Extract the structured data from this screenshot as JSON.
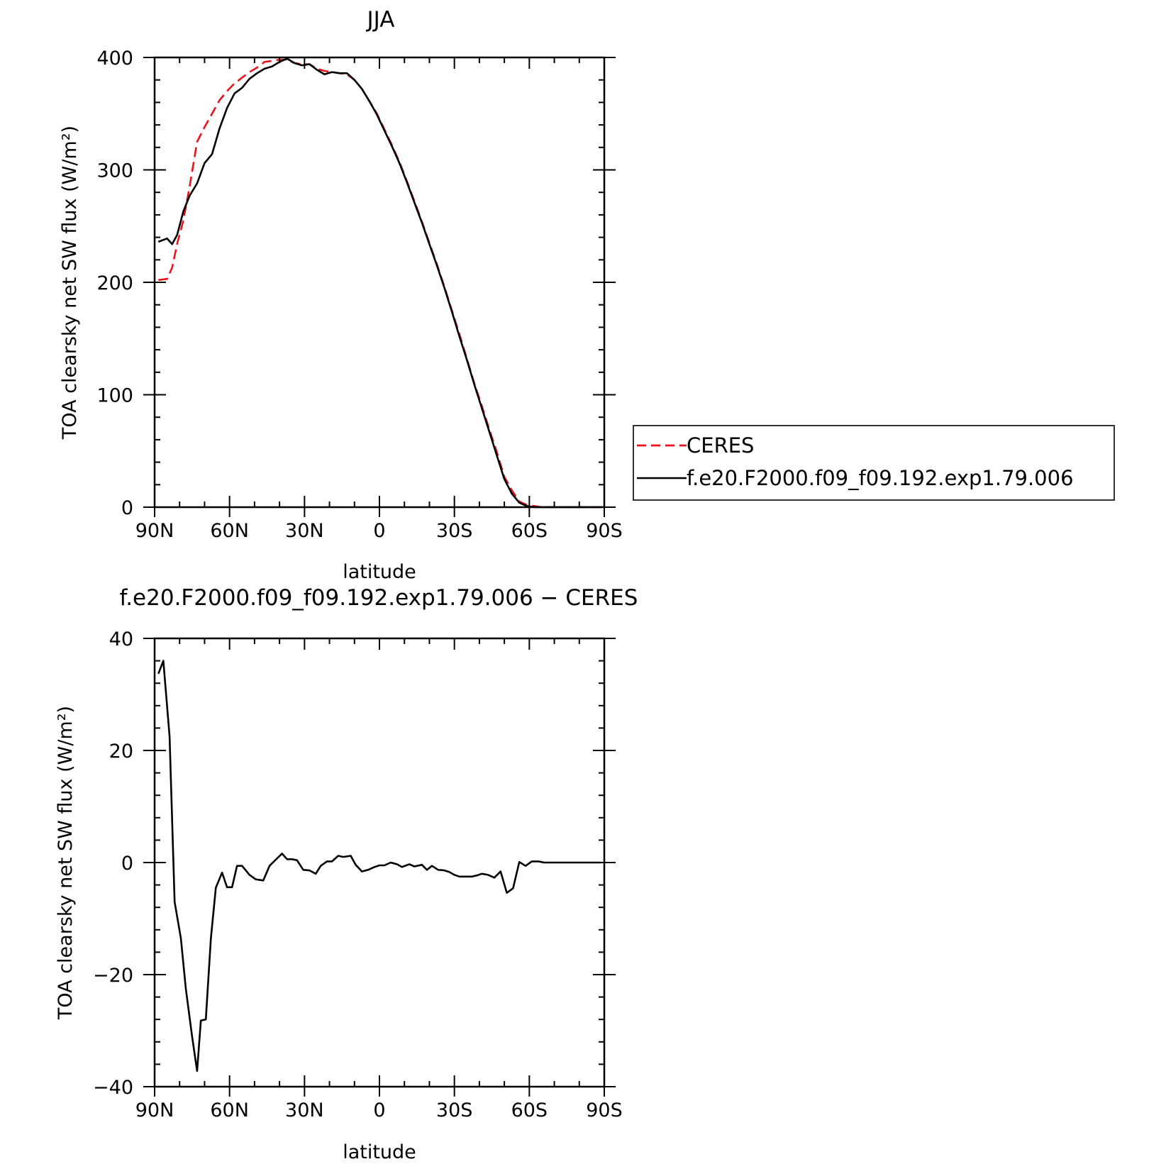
{
  "chart_data": [
    {
      "type": "line",
      "title": "JJA",
      "xlabel": "latitude",
      "ylabel": "TOA clearsky net SW flux (W/m²)",
      "xlim": [
        90,
        -90
      ],
      "ylim": [
        0,
        400
      ],
      "xticks": [
        90,
        60,
        30,
        0,
        -30,
        -60,
        -90
      ],
      "xtick_labels": [
        "90N",
        "60N",
        "30N",
        "0",
        "30S",
        "60S",
        "90S"
      ],
      "yticks": [
        0,
        100,
        200,
        300,
        400
      ],
      "ytick_labels": [
        "0",
        "100",
        "200",
        "300",
        "400"
      ],
      "legend_position": "right-outside",
      "series": [
        {
          "name": "CERES",
          "color": "#e8141c",
          "style": "dashed",
          "x": [
            88.5,
            85,
            83,
            81,
            78.5,
            76,
            73,
            70,
            67,
            64,
            61,
            58,
            55,
            52,
            49,
            46,
            43,
            40,
            37,
            34,
            31,
            28,
            25,
            22,
            19,
            16,
            13,
            10,
            7,
            4,
            1,
            -2,
            -5,
            -8,
            -11,
            -14,
            -17,
            -20,
            -23,
            -26,
            -29,
            -32,
            -35,
            -38,
            -41,
            -44,
            -47,
            -50,
            -53,
            -56,
            -59,
            -62,
            -65,
            -68,
            -71,
            -74,
            -77,
            -80,
            -83,
            -86,
            -89
          ],
          "y": [
            202,
            203,
            213,
            234,
            255,
            285,
            325,
            338,
            350,
            362,
            370,
            377,
            382,
            387,
            391,
            396,
            397,
            398,
            398,
            395,
            394,
            394,
            390,
            388,
            387,
            386,
            385,
            380,
            372,
            361,
            350,
            336,
            322,
            307,
            290,
            272,
            254,
            235,
            216,
            196,
            175,
            154,
            132,
            110,
            90,
            69,
            49,
            27,
            15,
            5,
            2,
            1,
            0,
            0,
            0,
            0,
            0,
            0,
            0,
            0,
            0
          ]
        },
        {
          "name": "f.e20.F2000.f09_f09.192.exp1.79.006",
          "color": "#000000",
          "style": "solid",
          "x": [
            88.5,
            85,
            83,
            81,
            78.5,
            76,
            73,
            70,
            67,
            64,
            61,
            58,
            55,
            52,
            49,
            46,
            43,
            40,
            37,
            34,
            31,
            28,
            25,
            22,
            19,
            16,
            13,
            10,
            7,
            4,
            1,
            -2,
            -5,
            -8,
            -11,
            -14,
            -17,
            -20,
            -23,
            -26,
            -29,
            -32,
            -35,
            -38,
            -41,
            -44,
            -47,
            -50,
            -53,
            -56,
            -59,
            -62,
            -65,
            -68,
            -71,
            -74,
            -77,
            -80,
            -83,
            -86,
            -89
          ],
          "y": [
            236,
            239,
            234,
            242,
            263,
            277,
            288,
            306,
            314,
            337,
            355,
            368,
            373,
            381,
            386,
            390,
            392,
            396,
            399,
            395,
            393,
            394,
            389,
            385,
            387,
            386,
            386,
            380,
            372,
            361,
            349,
            335,
            321,
            306,
            289,
            271,
            253,
            234,
            215,
            195,
            174,
            152,
            131,
            109,
            88,
            67,
            46,
            25,
            12,
            4,
            1,
            0,
            0,
            0,
            0,
            0,
            0,
            0,
            0,
            0,
            0
          ]
        }
      ]
    },
    {
      "type": "line",
      "title": "f.e20.F2000.f09_f09.192.exp1.79.006 − CERES",
      "xlabel": "latitude",
      "ylabel": "TOA clearsky net SW flux (W/m²)",
      "xlim": [
        90,
        -90
      ],
      "ylim": [
        -40,
        40
      ],
      "xticks": [
        90,
        60,
        30,
        0,
        -30,
        -60,
        -90
      ],
      "xtick_labels": [
        "90N",
        "60N",
        "30N",
        "0",
        "30S",
        "60S",
        "90S"
      ],
      "yticks": [
        -40,
        -20,
        0,
        20,
        40
      ],
      "ytick_labels": [
        "−40",
        "−20",
        "0",
        "20",
        "40"
      ],
      "series": [
        {
          "color": "#000000",
          "style": "solid",
          "x": [
            88.5,
            86.5,
            84,
            82,
            79.5,
            77.5,
            75,
            73,
            71.5,
            69.5,
            67.5,
            65.5,
            63,
            61,
            59,
            57,
            55,
            52,
            49.5,
            46.5,
            44,
            41.5,
            39,
            37,
            35,
            33,
            30.5,
            28,
            25.5,
            23.5,
            21,
            19,
            16.5,
            14.5,
            11.5,
            9.5,
            7,
            4.5,
            2,
            0,
            -2,
            -4.5,
            -7,
            -9,
            -12,
            -14,
            -17,
            -19,
            -21,
            -23.5,
            -26,
            -28,
            -30,
            -32,
            -34.5,
            -37,
            -39,
            -41,
            -43.5,
            -46,
            -48.5,
            -51,
            -53.5,
            -56,
            -58.5,
            -61,
            -63.5,
            -66,
            -68.5,
            -71,
            -73.5,
            -76,
            -78,
            -80.5,
            -83,
            -85.5,
            -88.5
          ],
          "y": [
            33.7,
            36,
            22.5,
            -7,
            -13.5,
            -22.5,
            -31,
            -37.2,
            -28.2,
            -28,
            -13.6,
            -4.5,
            -1.8,
            -4.4,
            -4.4,
            -0.6,
            -0.6,
            -2.2,
            -3,
            -3.2,
            -0.6,
            0.5,
            1.6,
            0.6,
            0.6,
            0.4,
            -1.3,
            -1.4,
            -2,
            -0.6,
            0.2,
            0.2,
            1.2,
            1,
            1.2,
            -0.4,
            -1.6,
            -1.3,
            -0.8,
            -0.5,
            -0.5,
            0,
            -0.3,
            -0.8,
            -0.3,
            -0.7,
            -0.4,
            -1.3,
            -0.6,
            -1.3,
            -1.4,
            -1.7,
            -2.2,
            -2.5,
            -2.5,
            -2.5,
            -2.3,
            -2,
            -2.2,
            -2.7,
            -1.6,
            -5.4,
            -4.6,
            0.1,
            -0.6,
            0.2,
            0.2,
            0,
            0,
            0,
            0,
            0,
            0,
            0,
            0,
            0,
            0
          ]
        }
      ]
    }
  ]
}
